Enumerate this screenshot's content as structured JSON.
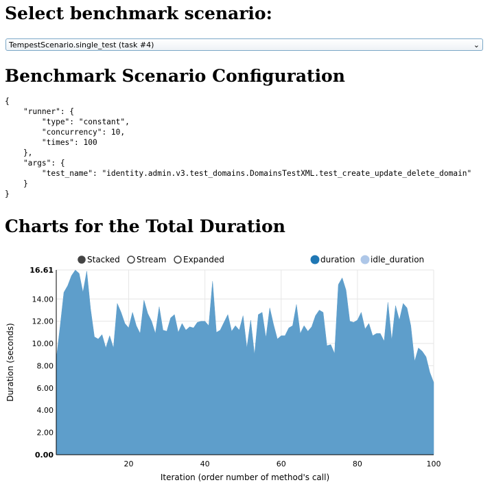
{
  "page": {
    "select_heading": "Select benchmark scenario:",
    "selected_scenario": "TempestScenario.single_test (task #4)",
    "config_heading": "Benchmark Scenario Configuration",
    "config_text": "{\n    \"runner\": {\n        \"type\": \"constant\",\n        \"concurrency\": 10,\n        \"times\": 100\n    },\n    \"args\": {\n        \"test_name\": \"identity.admin.v3.test_domains.DomainsTestXML.test_create_update_delete_domain\"\n    }\n}",
    "charts_heading": "Charts for the Total Duration"
  },
  "controls": {
    "modes": [
      {
        "label": "Stacked",
        "selected": true
      },
      {
        "label": "Stream",
        "selected": false
      },
      {
        "label": "Expanded",
        "selected": false
      }
    ]
  },
  "colors": {
    "duration": "#1f77b4",
    "area_fill": "#5e9ecb",
    "idle_duration": "#aec7e8"
  },
  "chart_data": {
    "type": "area",
    "xlabel": "Iteration (order number of method's call)",
    "ylabel": "Duration (seconds)",
    "xlim": [
      1,
      100
    ],
    "ylim": [
      0,
      16.61
    ],
    "x_ticks": [
      20,
      40,
      60,
      80,
      100
    ],
    "y_ticks": [
      "0.00",
      "2.00",
      "4.00",
      "6.00",
      "8.00",
      "10.00",
      "12.00",
      "14.00",
      "16.61"
    ],
    "grid": true,
    "legend_placement": "top-right",
    "series": [
      {
        "name": "duration",
        "values": [
          8.6,
          11.5,
          14.6,
          15.2,
          16.1,
          16.6,
          16.3,
          14.6,
          16.5,
          13.1,
          10.6,
          10.4,
          10.8,
          9.6,
          10.7,
          9.6,
          13.6,
          12.8,
          11.8,
          11.4,
          12.8,
          11.6,
          10.9,
          13.9,
          12.7,
          12.0,
          10.9,
          13.3,
          11.2,
          11.1,
          12.3,
          12.6,
          11.0,
          11.8,
          11.2,
          11.5,
          11.4,
          11.9,
          12.0,
          12.0,
          11.6,
          15.6,
          11.0,
          11.2,
          11.9,
          12.6,
          11.1,
          11.6,
          11.2,
          12.5,
          9.6,
          12.1,
          9.0,
          12.6,
          12.8,
          10.5,
          13.2,
          11.7,
          10.4,
          10.7,
          10.7,
          11.4,
          11.6,
          13.5,
          10.9,
          11.6,
          11.1,
          11.5,
          12.5,
          13.0,
          12.8,
          9.8,
          9.9,
          9.1,
          15.3,
          15.9,
          14.8,
          12.0,
          11.9,
          12.1,
          12.8,
          11.3,
          11.8,
          10.7,
          10.9,
          10.9,
          10.2,
          13.7,
          10.3,
          13.4,
          12.1,
          13.6,
          13.2,
          11.6,
          8.4,
          9.6,
          9.3,
          8.8,
          7.4,
          6.5
        ]
      },
      {
        "name": "idle_duration",
        "values": [
          0,
          0,
          0,
          0,
          0,
          0,
          0,
          0,
          0,
          0,
          0,
          0,
          0,
          0,
          0,
          0,
          0,
          0,
          0,
          0,
          0,
          0,
          0,
          0,
          0,
          0,
          0,
          0,
          0,
          0,
          0,
          0,
          0,
          0,
          0,
          0,
          0,
          0,
          0,
          0,
          0,
          0,
          0,
          0,
          0,
          0,
          0,
          0,
          0,
          0,
          0,
          0,
          0,
          0,
          0,
          0,
          0,
          0,
          0,
          0,
          0,
          0,
          0,
          0,
          0,
          0,
          0,
          0,
          0,
          0,
          0,
          0,
          0,
          0,
          0,
          0,
          0,
          0,
          0,
          0,
          0,
          0,
          0,
          0,
          0,
          0,
          0,
          0,
          0,
          0,
          0,
          0,
          0,
          0,
          0,
          0,
          0,
          0,
          0,
          0
        ]
      }
    ]
  }
}
